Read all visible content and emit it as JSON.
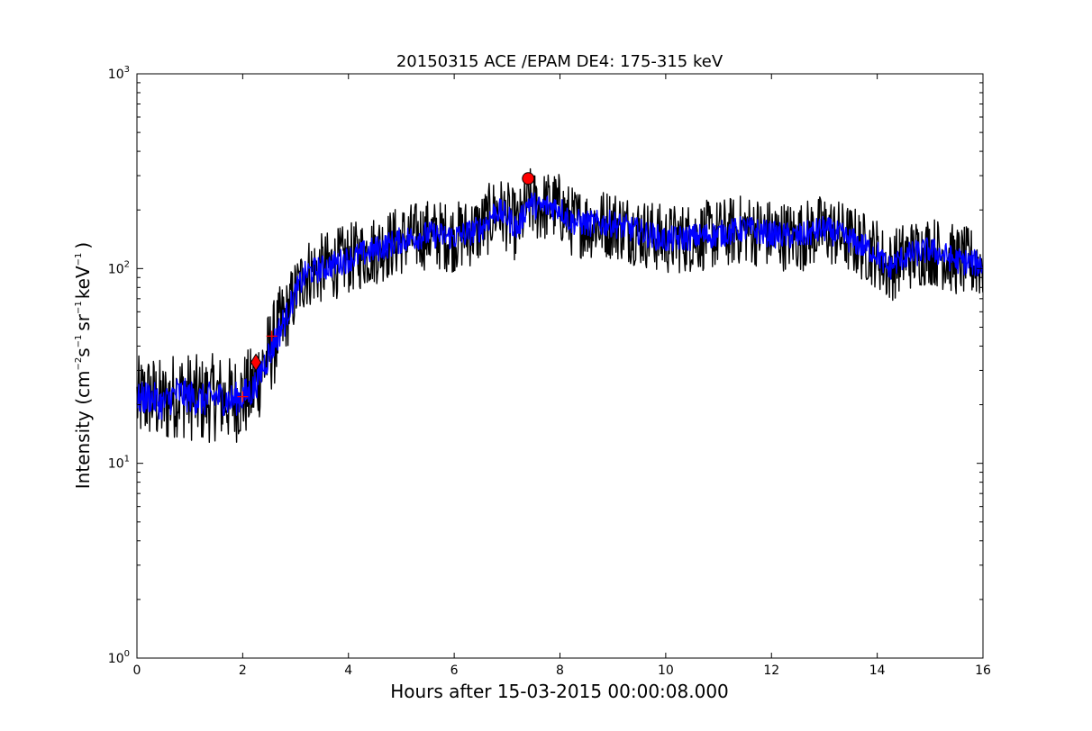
{
  "chart_data": {
    "type": "line",
    "title": "20150315 ACE /EPAM DE4: 175-315 keV",
    "xlabel": "Hours after 15-03-2015 00:00:08.000",
    "ylabel_parts": {
      "main": "Intensity (cm",
      "e1": "−2",
      "s": "s",
      "e2": "−1",
      "sr": "sr",
      "e3": "−1",
      "kev": "keV",
      "e4": "−1",
      "close": ")"
    },
    "xlim": [
      0,
      16
    ],
    "ylim": [
      1,
      1000
    ],
    "yscale": "log",
    "grid": false,
    "x_ticks": [
      "0",
      "2",
      "4",
      "6",
      "8",
      "10",
      "12",
      "14",
      "16"
    ],
    "y_ticks": [
      {
        "base": "10",
        "exp": "0",
        "value": 1
      },
      {
        "base": "10",
        "exp": "1",
        "value": 10
      },
      {
        "base": "10",
        "exp": "2",
        "value": 100
      },
      {
        "base": "10",
        "exp": "3",
        "value": 1000
      }
    ],
    "series": [
      {
        "style": "raw",
        "color": "#000000",
        "x": [
          0,
          0.25,
          0.5,
          0.75,
          1.0,
          1.25,
          1.5,
          1.75,
          2.0,
          2.2,
          2.4,
          2.6,
          2.8,
          3.0,
          3.2,
          3.5,
          4.0,
          4.5,
          5.0,
          5.5,
          6.0,
          6.5,
          6.8,
          7.0,
          7.2,
          7.4,
          7.6,
          7.8,
          8.0,
          8.2,
          8.5,
          9.0,
          9.5,
          10.0,
          10.5,
          11.0,
          11.5,
          12.0,
          12.5,
          13.0,
          13.5,
          14.0,
          14.2,
          14.5,
          15.0,
          15.5,
          16.0
        ],
        "y": [
          21,
          22,
          20,
          23,
          22,
          21,
          22,
          21,
          22,
          24,
          32,
          42,
          55,
          75,
          95,
          100,
          112,
          125,
          140,
          150,
          145,
          160,
          200,
          185,
          160,
          220,
          205,
          210,
          205,
          175,
          170,
          170,
          155,
          140,
          145,
          150,
          160,
          150,
          145,
          160,
          140,
          120,
          100,
          115,
          125,
          110,
          105
        ]
      },
      {
        "style": "smoothed",
        "color": "#0000ff",
        "x": [
          0,
          0.25,
          0.5,
          0.75,
          1.0,
          1.25,
          1.5,
          1.75,
          2.0,
          2.2,
          2.4,
          2.6,
          2.8,
          3.0,
          3.2,
          3.5,
          4.0,
          4.5,
          5.0,
          5.5,
          6.0,
          6.5,
          6.8,
          7.0,
          7.2,
          7.4,
          7.6,
          7.8,
          8.0,
          8.2,
          8.5,
          9.0,
          9.5,
          10.0,
          10.5,
          11.0,
          11.5,
          12.0,
          12.5,
          13.0,
          13.5,
          14.0,
          14.2,
          14.5,
          15.0,
          15.5,
          16.0
        ],
        "y": [
          21,
          22,
          20,
          23,
          22,
          21,
          22,
          21,
          22,
          24,
          32,
          42,
          55,
          75,
          95,
          100,
          112,
          125,
          140,
          150,
          145,
          160,
          200,
          185,
          160,
          220,
          205,
          210,
          205,
          175,
          170,
          170,
          155,
          140,
          145,
          150,
          160,
          150,
          145,
          160,
          140,
          120,
          100,
          115,
          125,
          110,
          105
        ]
      }
    ],
    "markers": [
      {
        "shape": "diamond",
        "color": "#ff0000",
        "x": 2.25,
        "y": 33
      },
      {
        "shape": "plus",
        "color": "#ff0000",
        "x": 2.55,
        "y": 45
      },
      {
        "shape": "plus",
        "color": "#ff0000",
        "x": 2.0,
        "y": 22
      },
      {
        "shape": "circle",
        "color": "#ff0000",
        "x": 7.4,
        "y": 290
      }
    ]
  }
}
